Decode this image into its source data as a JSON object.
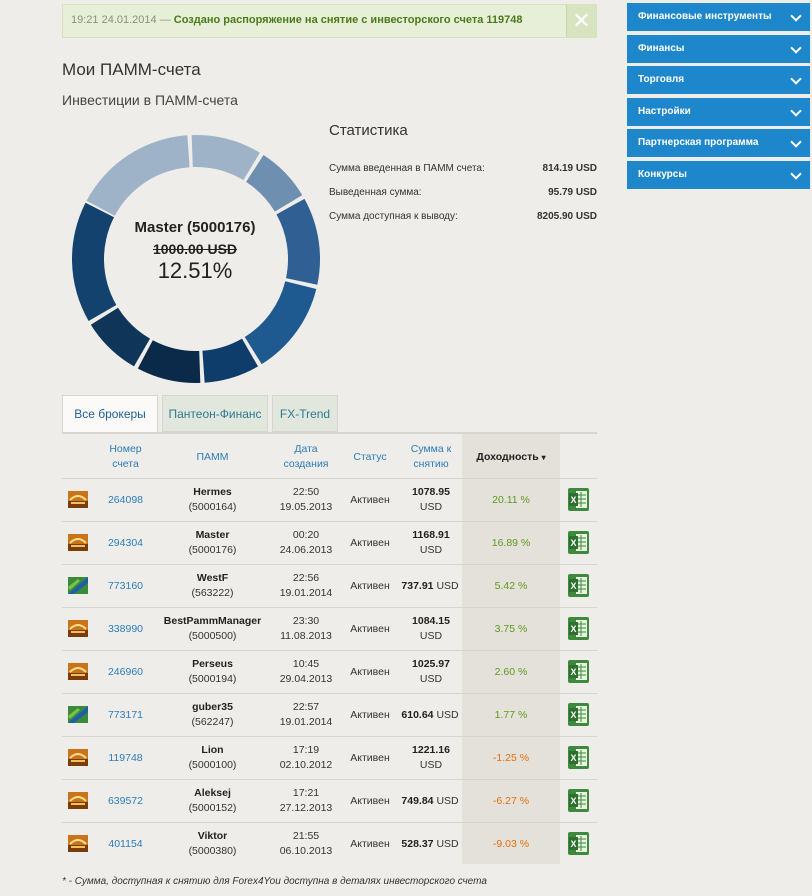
{
  "notice": {
    "time": "19:21 24.01.2014 —",
    "message": "Создано распоряжение на снятие с инвесторского счета 119748",
    "close": "✕"
  },
  "page_title": "Мои ПАММ-счета",
  "section_title": "Инвестиции в ПАММ-счета",
  "donut": {
    "name": "Master (5000176)",
    "amount": "1000.00 USD",
    "percent": "12.51%"
  },
  "stats": {
    "title": "Статистика",
    "rows": [
      {
        "label": "Сумма введенная в ПАММ счета:",
        "value": "814.19 USD"
      },
      {
        "label": "Выведенная сумма:",
        "value": "95.79 USD"
      },
      {
        "label": "Сумма доступная к выводу:",
        "value": "8205.90 USD"
      }
    ]
  },
  "sidebar": [
    {
      "label": "Финансовые инструменты"
    },
    {
      "label": "Финансы"
    },
    {
      "label": "Торговля"
    },
    {
      "label": "Настройки"
    },
    {
      "label": "Партнерская программа"
    },
    {
      "label": "Конкурсы"
    }
  ],
  "tabs": [
    "Все брокеры",
    "Пантеон-Финанс",
    "FX-Trend"
  ],
  "table": {
    "headers": {
      "account": [
        "Номер",
        "счета"
      ],
      "pamm": "ПАММ",
      "date": [
        "Дата",
        "создания"
      ],
      "status": "Статус",
      "sum": [
        "Сумма к",
        "снятию"
      ],
      "yield": "Доходность"
    },
    "rows": [
      {
        "broker": "panteon",
        "account": "264098",
        "name": "Hermes",
        "id": "(5000164)",
        "time": "22:50",
        "date": "19.05.2013",
        "status": "Активен",
        "sum": "1078.95",
        "cur": "USD",
        "inline": false,
        "yield": "20.11 %",
        "sign": "pos"
      },
      {
        "broker": "panteon",
        "account": "294304",
        "name": "Master",
        "id": "(5000176)",
        "time": "00:20",
        "date": "24.06.2013",
        "status": "Активен",
        "sum": "1168.91",
        "cur": "USD",
        "inline": false,
        "yield": "16.89 %",
        "sign": "pos"
      },
      {
        "broker": "fxtrend",
        "account": "773160",
        "name": "WestF",
        "id": "(563222)",
        "time": "22:56",
        "date": "19.01.2014",
        "status": "Активен",
        "sum": "737.91",
        "cur": "USD",
        "inline": true,
        "yield": "5.42 %",
        "sign": "pos"
      },
      {
        "broker": "panteon",
        "account": "338990",
        "name": "BestPammManager",
        "id": "(5000500)",
        "time": "23:30",
        "date": "11.08.2013",
        "status": "Активен",
        "sum": "1084.15",
        "cur": "USD",
        "inline": false,
        "yield": "3.75 %",
        "sign": "pos"
      },
      {
        "broker": "panteon",
        "account": "246960",
        "name": "Perseus",
        "id": "(5000194)",
        "time": "10:45",
        "date": "29.04.2013",
        "status": "Активен",
        "sum": "1025.97",
        "cur": "USD",
        "inline": false,
        "yield": "2.60 %",
        "sign": "pos"
      },
      {
        "broker": "fxtrend",
        "account": "773171",
        "name": "guber35",
        "id": "(562247)",
        "time": "22:57",
        "date": "19.01.2014",
        "status": "Активен",
        "sum": "610.64",
        "cur": "USD",
        "inline": true,
        "yield": "1.77 %",
        "sign": "pos"
      },
      {
        "broker": "panteon",
        "account": "119748",
        "name": "Lion",
        "id": "(5000100)",
        "time": "17:19",
        "date": "02.10.2012",
        "status": "Активен",
        "sum": "1221.16",
        "cur": "USD",
        "inline": false,
        "yield": "-1.25 %",
        "sign": "neg"
      },
      {
        "broker": "panteon",
        "account": "639572",
        "name": "Aleksej",
        "id": "(5000152)",
        "time": "17:21",
        "date": "27.12.2013",
        "status": "Активен",
        "sum": "749.84",
        "cur": "USD",
        "inline": true,
        "yield": "-6.27 %",
        "sign": "neg"
      },
      {
        "broker": "panteon",
        "account": "401154",
        "name": "Viktor",
        "id": "(5000380)",
        "time": "21:55",
        "date": "06.10.2013",
        "status": "Активен",
        "sum": "528.37",
        "cur": "USD",
        "inline": true,
        "yield": "-9.03 %",
        "sign": "neg"
      }
    ]
  },
  "footnote": "* - Сумма, доступная к снятию для Forex4You доступна в деталях инвесторского счета",
  "colors": {
    "sidebar": "#1e87cb",
    "link": "#2b7db8",
    "positive": "#5b9a1e",
    "negative": "#e0700f",
    "donut_segments": [
      "#9fb3c8",
      "#9fb3c8",
      "#6f8fb0",
      "#2f5f93",
      "#1e5a8f",
      "#0f3d6b",
      "#0b2a4a",
      "#0f3558",
      "#13426e",
      "#1a4d80"
    ]
  }
}
